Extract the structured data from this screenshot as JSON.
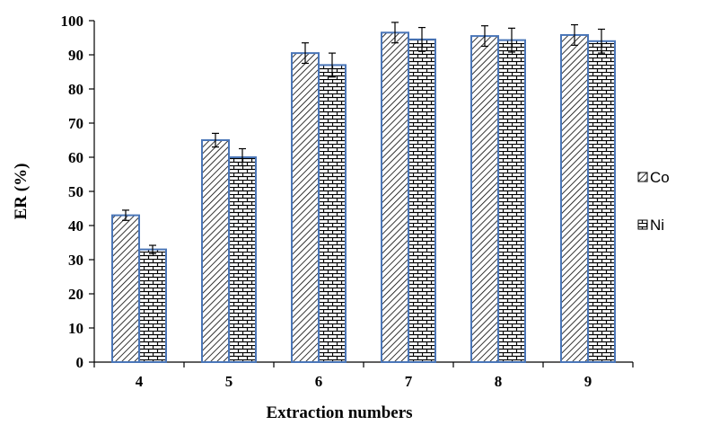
{
  "chart_data": {
    "type": "bar",
    "title": "",
    "xlabel": "Extraction numbers",
    "ylabel": "ER (%)",
    "ylim": [
      0,
      100
    ],
    "yticks": [
      0,
      10,
      20,
      30,
      40,
      50,
      60,
      70,
      80,
      90,
      100
    ],
    "categories": [
      "4",
      "5",
      "6",
      "7",
      "8",
      "9"
    ],
    "series": [
      {
        "name": "Co",
        "values": [
          43,
          65,
          90.5,
          96.5,
          95.5,
          95.8
        ],
        "errors": [
          1.5,
          2,
          3,
          3,
          3,
          3
        ],
        "pattern": "diagonal-hatch"
      },
      {
        "name": "Ni",
        "values": [
          33,
          60,
          87,
          94.5,
          94.3,
          94
        ],
        "errors": [
          1.2,
          2.5,
          3.5,
          3.5,
          3.5,
          3.5
        ],
        "pattern": "brick"
      }
    ],
    "grid": false,
    "legend_position": "right",
    "bar_border_color": "#4a76b8"
  }
}
